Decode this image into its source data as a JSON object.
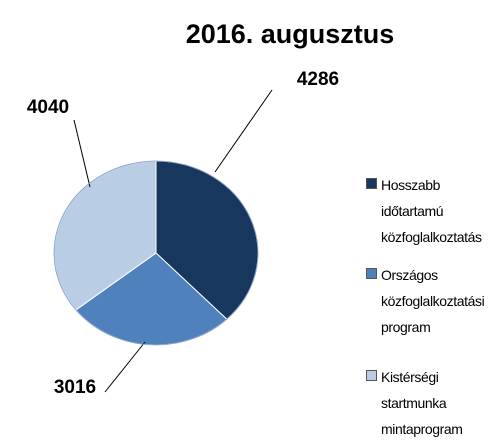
{
  "chart_data": {
    "type": "pie",
    "title": "2016. augusztus",
    "categories": [
      "Hosszabb időtartamú közfoglalkoztatás",
      "Országos közfoglalkoztatási program",
      "Kistérségi startmunka mintaprogram"
    ],
    "values": [
      4286,
      3016,
      4040
    ],
    "colors": [
      "#17375e",
      "#4f81bd",
      "#b9cde5"
    ],
    "legend": "right"
  }
}
